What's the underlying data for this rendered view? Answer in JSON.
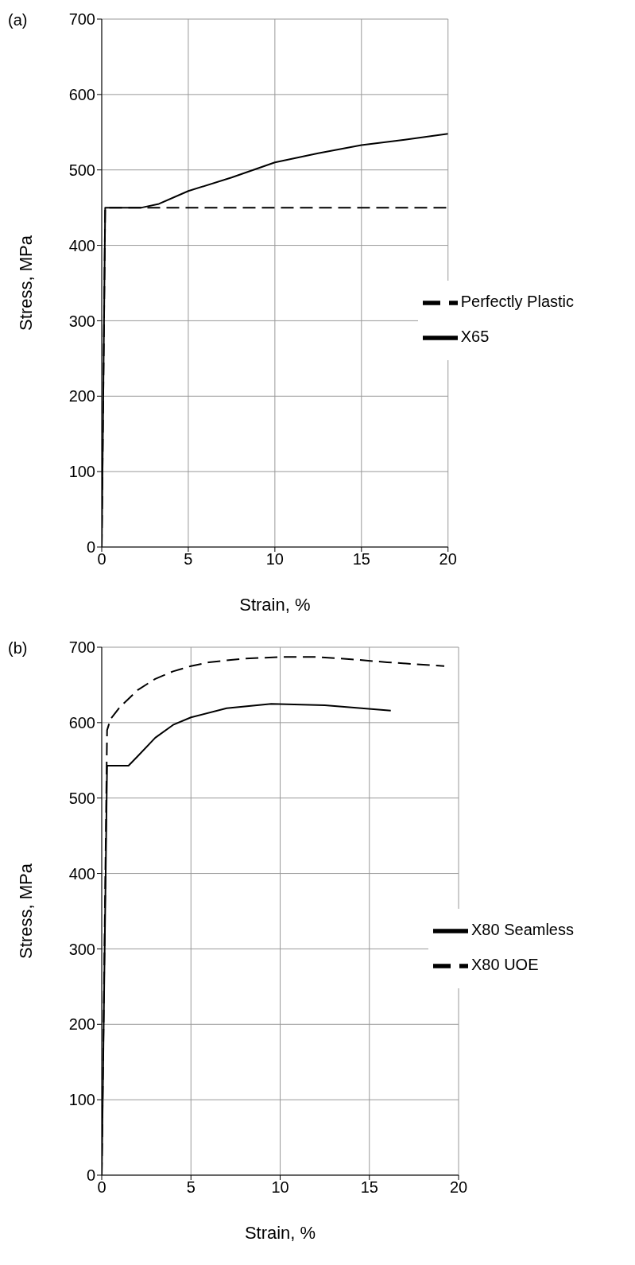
{
  "chart_data": [
    {
      "type": "line",
      "annotations": [
        "(a)"
      ],
      "xlabel": "Strain, %",
      "ylabel": "Stress, MPa",
      "xlim": [
        0,
        20
      ],
      "xticks": [
        0,
        5,
        10,
        15,
        20
      ],
      "ylim": [
        0,
        700
      ],
      "yticks": [
        0,
        100,
        200,
        300,
        400,
        500,
        600,
        700
      ],
      "grid": true,
      "legend": "right",
      "marker": "none",
      "series": [
        {
          "name": "X65",
          "color": "#000000",
          "line_style": "solid",
          "x": [
            0,
            0.2,
            2.3,
            3.3,
            5,
            7.5,
            10,
            12.5,
            15,
            17.5,
            20
          ],
          "values": [
            0,
            450,
            450,
            455,
            472,
            490,
            510,
            522,
            533,
            540,
            548
          ]
        },
        {
          "name": "Perfectly Plastic",
          "color": "#000000",
          "line_style": "dashed",
          "x": [
            0,
            0.2,
            20
          ],
          "values": [
            0,
            450,
            450
          ]
        }
      ]
    },
    {
      "type": "line",
      "annotations": [
        "(b)"
      ],
      "xlabel": "Strain, %",
      "ylabel": "Stress, MPa",
      "xlim": [
        0,
        20
      ],
      "xticks": [
        0,
        5,
        10,
        15,
        20
      ],
      "ylim": [
        0,
        700
      ],
      "yticks": [
        0,
        100,
        200,
        300,
        400,
        500,
        600,
        700
      ],
      "grid": true,
      "legend": "right",
      "marker": "none",
      "series": [
        {
          "name": "X80 Seamless",
          "color": "#000000",
          "line_style": "solid",
          "x": [
            0,
            0.3,
            1.5,
            2,
            3,
            4,
            5,
            7,
            9.5,
            12.5,
            16.2
          ],
          "values": [
            0,
            543,
            543,
            555,
            580,
            597,
            607,
            619,
            625,
            623,
            616
          ]
        },
        {
          "name": "X80 UOE",
          "color": "#000000",
          "line_style": "dashed",
          "x": [
            0,
            0.3,
            0.5,
            1,
            2,
            3,
            4,
            5,
            6,
            8,
            10,
            12,
            14,
            16,
            19.2
          ],
          "values": [
            0,
            590,
            605,
            620,
            643,
            658,
            668,
            675,
            680,
            685,
            687,
            687,
            684,
            680,
            675
          ]
        }
      ]
    }
  ]
}
